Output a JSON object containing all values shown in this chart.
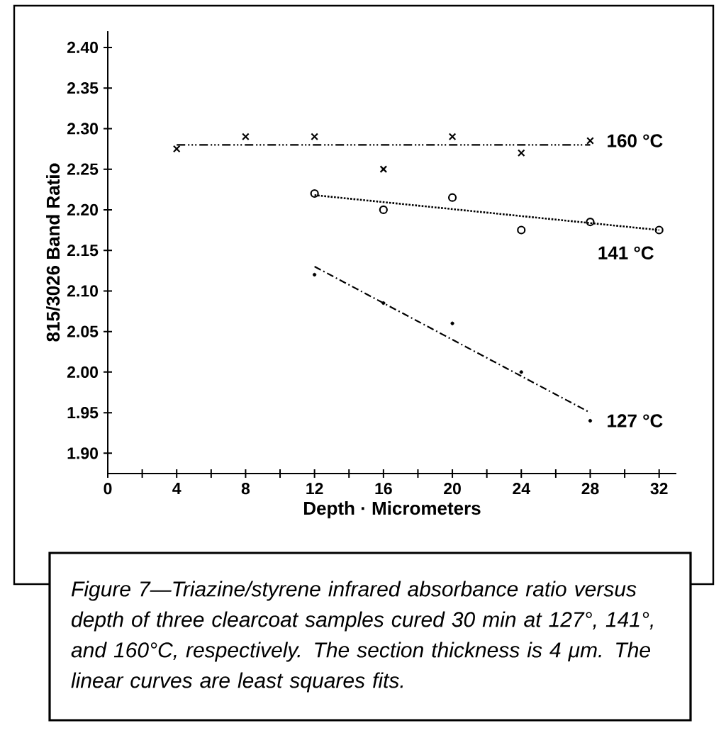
{
  "chart_data": {
    "type": "scatter",
    "xlabel": "Depth · Micrometers",
    "ylabel": "815/3026 Band Ratio",
    "annotations": [
      "*Figure 7—Triazine/styrene infrared absorbance ratio versus depth of three clearcoat samples cured 30 min at 127°, 141°, and 160°C, respectively. The section thickness is 4 μm. The linear curves are least squares fits.*"
    ],
    "xlim": [
      0,
      33
    ],
    "ylim": [
      1.875,
      2.42
    ],
    "xticks": [
      0,
      {
        "value": 2,
        "label": null
      },
      4,
      {
        "value": 6,
        "label": null
      },
      8,
      {
        "value": 10,
        "label": null
      },
      12,
      {
        "value": 14,
        "label": null
      },
      16,
      {
        "value": 18,
        "label": null
      },
      20,
      {
        "value": 22,
        "label": null
      },
      24,
      {
        "value": 26,
        "label": null
      },
      28,
      {
        "value": 30,
        "label": null
      },
      32
    ],
    "yticks": [
      {
        "value": 1.9,
        "label": "1.90"
      },
      {
        "value": 1.95,
        "label": "1.95"
      },
      {
        "value": 2.0,
        "label": "2.00"
      },
      {
        "value": 2.05,
        "label": "2.05"
      },
      {
        "value": 2.1,
        "label": "2.10"
      },
      {
        "value": 2.15,
        "label": "2.15"
      },
      {
        "value": 2.2,
        "label": "2.20"
      },
      {
        "value": 2.25,
        "label": "2.25"
      },
      {
        "value": 2.3,
        "label": "2.30"
      },
      {
        "value": 2.35,
        "label": "2.35"
      },
      {
        "value": 2.4,
        "label": "2.40"
      }
    ],
    "grid": false,
    "series": [
      {
        "name": "160 °C",
        "color": "#000000",
        "marker": "cross",
        "x": [
          4,
          8,
          12,
          16,
          20,
          24,
          28
        ],
        "values": [
          2.275,
          2.29,
          2.29,
          2.25,
          2.29,
          2.27,
          2.285
        ]
      },
      {
        "type": "line",
        "color": "#000000",
        "marker": "none",
        "line_style": "dashdotdot",
        "x": [
          4,
          28
        ],
        "values": [
          2.28,
          2.28
        ]
      },
      {
        "name": "141 °C",
        "color": "#000000",
        "marker": "circle",
        "x": [
          12,
          16,
          20,
          24,
          28,
          32
        ],
        "values": [
          2.22,
          2.2,
          2.215,
          2.175,
          2.185,
          2.175
        ]
      },
      {
        "type": "line",
        "color": "#000000",
        "marker": "none",
        "line_style": "dotted",
        "x": [
          12,
          32
        ],
        "values": [
          2.218,
          2.175
        ]
      },
      {
        "name": "127 °C",
        "color": "#000000",
        "marker": "dot",
        "x": [
          12,
          16,
          20,
          24,
          28
        ],
        "values": [
          2.12,
          2.085,
          2.06,
          2.0,
          1.94
        ]
      },
      {
        "type": "line",
        "color": "#000000",
        "marker": "none",
        "line_style": "dashdot",
        "x": [
          12,
          28
        ],
        "values": [
          2.13,
          1.95
        ]
      }
    ]
  }
}
